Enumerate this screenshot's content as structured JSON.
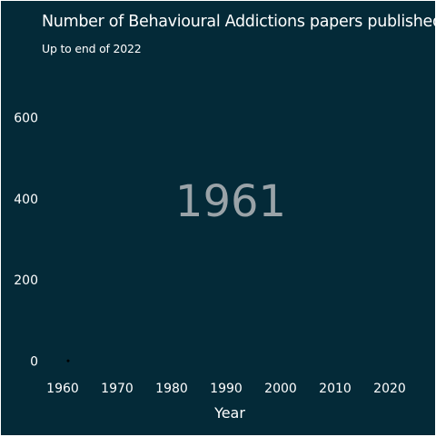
{
  "chart_data": {
    "type": "scatter",
    "title": "Number of Behavioural Addictions papers published",
    "subtitle": "Up to end of 2022",
    "xlabel": "Year",
    "ylabel": "",
    "current_year": "1961",
    "xlim": [
      1957,
      2027
    ],
    "ylim": [
      -10,
      720
    ],
    "x_ticks": [
      1960,
      1970,
      1980,
      1990,
      2000,
      2010,
      2020
    ],
    "y_ticks": [
      0,
      200,
      400,
      600
    ],
    "grid": false,
    "legend": "none",
    "series": [
      {
        "x": [
          1961
        ],
        "y": [
          1
        ]
      }
    ]
  },
  "colors": {
    "background": "#042a38",
    "text": "#ffffff",
    "watermark": "#9aa3a8",
    "point": "#000000"
  }
}
